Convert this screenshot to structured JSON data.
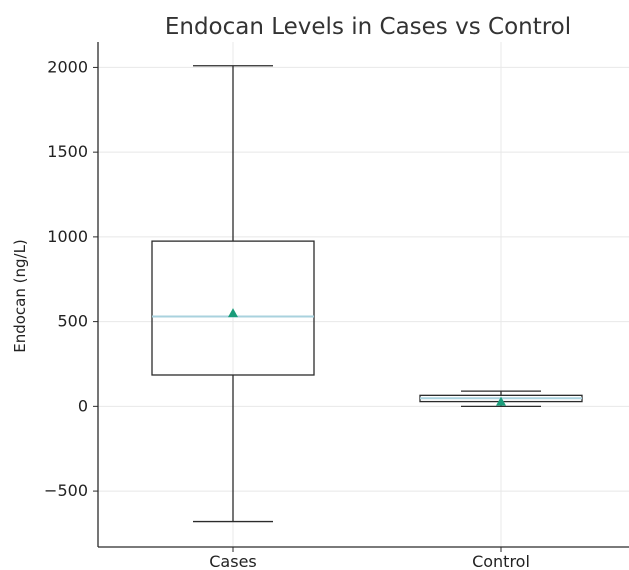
{
  "chart_data": {
    "type": "box",
    "title": "Endocan Levels in Cases vs Control",
    "xlabel": "",
    "ylabel": "Endocan (ng/L)",
    "categories": [
      "Cases",
      "Control"
    ],
    "yticks": [
      {
        "value": -500,
        "label": "−500"
      },
      {
        "value": 0,
        "label": "0"
      },
      {
        "value": 500,
        "label": "500"
      },
      {
        "value": 1000,
        "label": "1000"
      },
      {
        "value": 1500,
        "label": "1500"
      },
      {
        "value": 2000,
        "label": "2000"
      }
    ],
    "ylim": [
      -830,
      2150
    ],
    "grid": true,
    "boxes": [
      {
        "category": "Cases",
        "whisker_low": -680,
        "q1": 185,
        "median": 530,
        "q3": 975,
        "whisker_high": 2010,
        "mean": 550
      },
      {
        "category": "Control",
        "whisker_low": 0,
        "q1": 28,
        "median": 48,
        "q3": 65,
        "whisker_high": 90,
        "mean": 28
      }
    ],
    "colors": {
      "box_edge": "#2b2b2b",
      "median_line": "#a9d2de",
      "mean_marker": "#1a9c7a",
      "grid": "#e8e8e8",
      "axis": "#2b2b2b",
      "title": "#333333"
    }
  }
}
